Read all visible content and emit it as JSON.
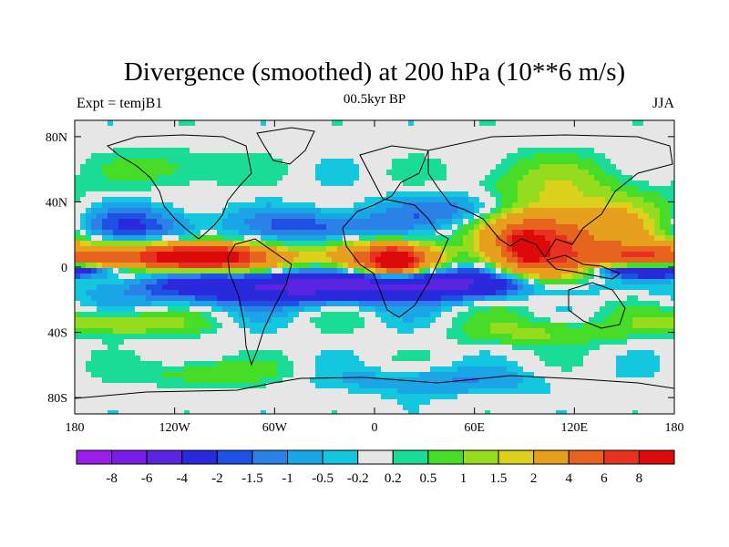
{
  "chart_data": {
    "type": "filled-contour-map",
    "title": "Divergence (smoothed) at 200 hPa (10**6 m/s)",
    "left_label": "Expt = temjB1",
    "center_label": "00.5kyr BP",
    "right_label": "JJA",
    "x_ticks": [
      {
        "lon": -180,
        "label": "180"
      },
      {
        "lon": -120,
        "label": "120W"
      },
      {
        "lon": -60,
        "label": "60W"
      },
      {
        "lon": 0,
        "label": "0"
      },
      {
        "lon": 60,
        "label": "60E"
      },
      {
        "lon": 120,
        "label": "120E"
      },
      {
        "lon": 180,
        "label": "180"
      }
    ],
    "y_ticks": [
      {
        "lat": 80,
        "label": "80N"
      },
      {
        "lat": 40,
        "label": "40N"
      },
      {
        "lat": 0,
        "label": "0"
      },
      {
        "lat": -40,
        "label": "40S"
      },
      {
        "lat": -80,
        "label": "80S"
      }
    ],
    "xlim": [
      -180,
      180
    ],
    "ylim": [
      -90,
      90
    ],
    "colorbar": {
      "labels": [
        "-8",
        "-6",
        "-4",
        "-2",
        "-1.5",
        "-1",
        "-0.5",
        "-0.2",
        "0.2",
        "0.5",
        "1",
        "1.5",
        "2",
        "4",
        "6",
        "8"
      ],
      "colors": [
        "#9b1ee8",
        "#7a1ee6",
        "#5a24e0",
        "#2a2adc",
        "#1e50e4",
        "#2a82e6",
        "#1aa6e6",
        "#14c6de",
        "#e6e6e6",
        "#1adc96",
        "#46dc28",
        "#96dc1e",
        "#dcd21e",
        "#e6a01e",
        "#e6641e",
        "#e6321e",
        "#dc0a0a"
      ]
    },
    "field_blobs": [
      {
        "lon": -120,
        "lat": 6,
        "rlon": 70,
        "rlat": 9,
        "v": 5
      },
      {
        "lon": -105,
        "lat": 6,
        "rlon": 28,
        "rlat": 6,
        "v": 9
      },
      {
        "lon": 5,
        "lat": 5,
        "rlon": 32,
        "rlat": 10,
        "v": 6
      },
      {
        "lon": 12,
        "lat": 4,
        "rlon": 10,
        "rlat": 6,
        "v": 9
      },
      {
        "lon": 95,
        "lat": 12,
        "rlon": 28,
        "rlat": 22,
        "v": 6
      },
      {
        "lon": 92,
        "lat": 13,
        "rlon": 8,
        "rlat": 7,
        "v": 9
      },
      {
        "lon": 130,
        "lat": 18,
        "rlon": 45,
        "rlat": 26,
        "v": 3
      },
      {
        "lon": 160,
        "lat": 7,
        "rlon": 25,
        "rlat": 7,
        "v": 4
      },
      {
        "lon": -60,
        "lat": -12,
        "rlon": 80,
        "rlat": 10,
        "v": -4
      },
      {
        "lon": 50,
        "lat": -10,
        "rlon": 80,
        "rlat": 9,
        "v": -4
      },
      {
        "lon": 170,
        "lat": -2,
        "rlon": 40,
        "rlat": 4,
        "v": -5
      },
      {
        "lon": -140,
        "lat": 25,
        "rlon": 38,
        "rlat": 12,
        "v": -2
      },
      {
        "lon": -30,
        "lat": 25,
        "rlon": 40,
        "rlat": 10,
        "v": -2
      },
      {
        "lon": 60,
        "lat": 35,
        "rlon": 50,
        "rlat": 10,
        "v": -1.5
      },
      {
        "lon": -155,
        "lat": -35,
        "rlon": 40,
        "rlat": 7,
        "v": 1.8
      },
      {
        "lon": 100,
        "lat": -40,
        "rlon": 45,
        "rlat": 8,
        "v": 1.2
      },
      {
        "lon": -120,
        "lat": 60,
        "rlon": 35,
        "rlat": 12,
        "v": 0.8
      },
      {
        "lon": 100,
        "lat": 55,
        "rlon": 45,
        "rlat": 15,
        "v": 0.8
      },
      {
        "lon": -100,
        "lat": -65,
        "rlon": 40,
        "rlat": 8,
        "v": 1
      },
      {
        "lon": 40,
        "lat": -70,
        "rlon": 60,
        "rlat": 8,
        "v": -1
      }
    ]
  }
}
